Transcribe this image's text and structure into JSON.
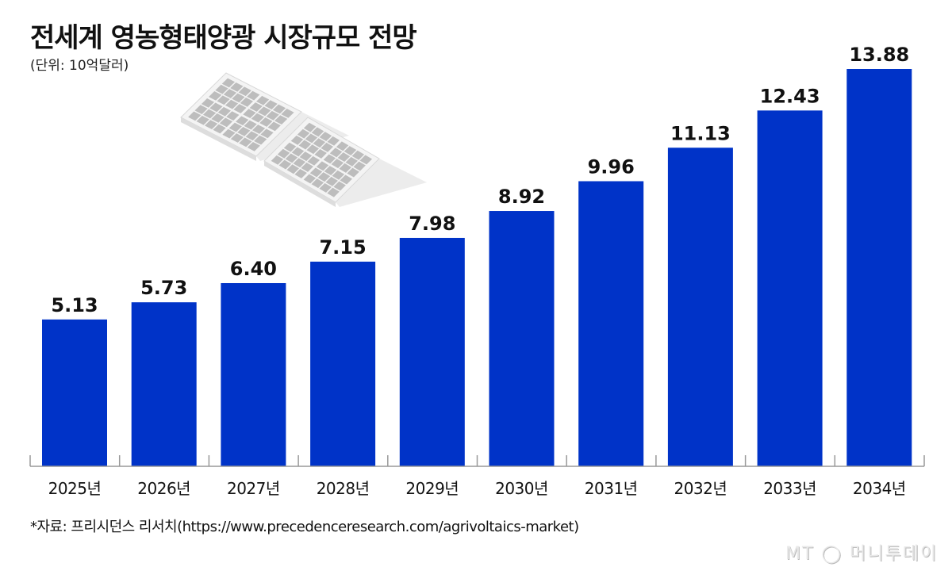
{
  "title": "전세계 영농형태양광 시장규모 전망",
  "unit_label": "(단위: 10억달러)",
  "source": "*자료: 프리시던스 리서치(https://www.precedenceresearch.com/agrivoltaics-market)",
  "logo_text": "MT 머니투데이",
  "colors": {
    "bar": "#0033c8",
    "axis": "#999999",
    "panel": "#bdbdbd"
  },
  "illustration": "solar-panels",
  "chart_data": {
    "type": "bar",
    "title": "전세계 영농형태양광 시장규모 전망",
    "ylabel": "(단위: 10억달러)",
    "categories": [
      "2025년",
      "2026년",
      "2027년",
      "2028년",
      "2029년",
      "2030년",
      "2031년",
      "2032년",
      "2033년",
      "2034년"
    ],
    "values": [
      5.13,
      5.73,
      6.4,
      7.15,
      7.98,
      8.92,
      9.96,
      11.13,
      12.43,
      13.88
    ],
    "value_labels": [
      "5.13",
      "5.73",
      "6.40",
      "7.15",
      "7.98",
      "8.92",
      "9.96",
      "11.13",
      "12.43",
      "13.88"
    ],
    "ylim": [
      0,
      13.88
    ],
    "grid": false,
    "legend": "none"
  }
}
